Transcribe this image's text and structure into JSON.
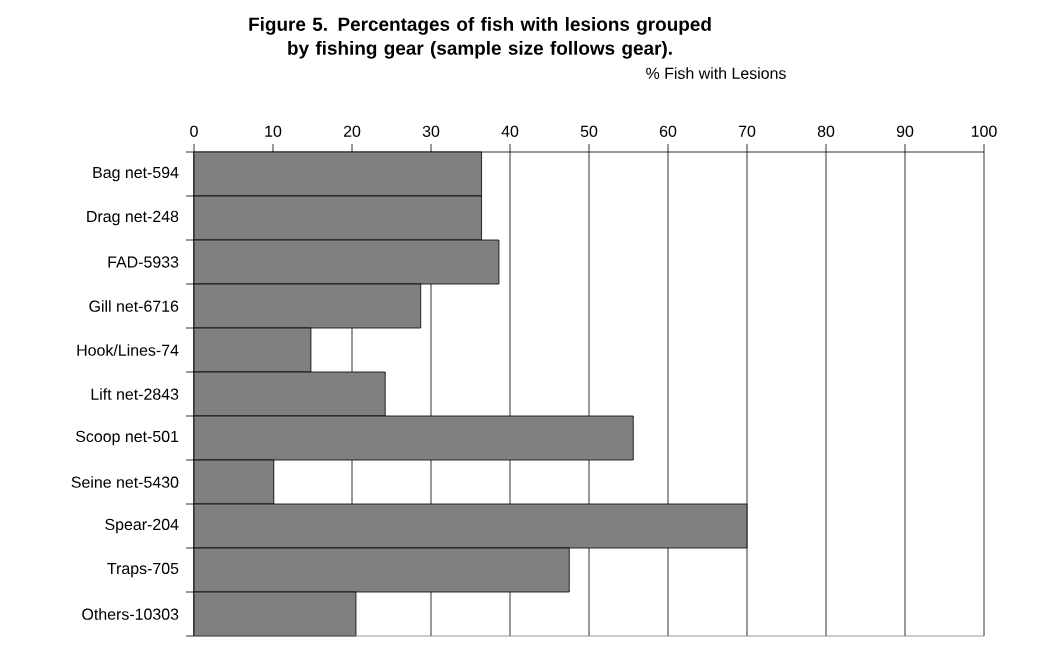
{
  "chart_data": {
    "type": "bar",
    "orientation": "horizontal",
    "title": "Figure 5. Percentages of fish with lesions grouped by fishing gear (sample size follows gear).",
    "xlabel": "% Fish with Lesions",
    "categories": [
      "Bag net-594",
      "Drag net-248",
      "FAD-5933",
      "Gill net-6716",
      "Hook/Lines-74",
      "Lift net-2843",
      "Scoop net-501",
      "Seine net-5430",
      "Spear-204",
      "Traps-705",
      "Others-10303"
    ],
    "values": [
      36.4,
      36.4,
      38.6,
      28.7,
      14.8,
      24.2,
      55.6,
      10.1,
      70,
      47.5,
      20.5
    ],
    "color": "#808080",
    "xlim": [
      0,
      100
    ],
    "xticks": [
      0,
      10,
      20,
      30,
      40,
      50,
      60,
      70,
      80,
      90,
      100
    ],
    "grid": "x"
  }
}
